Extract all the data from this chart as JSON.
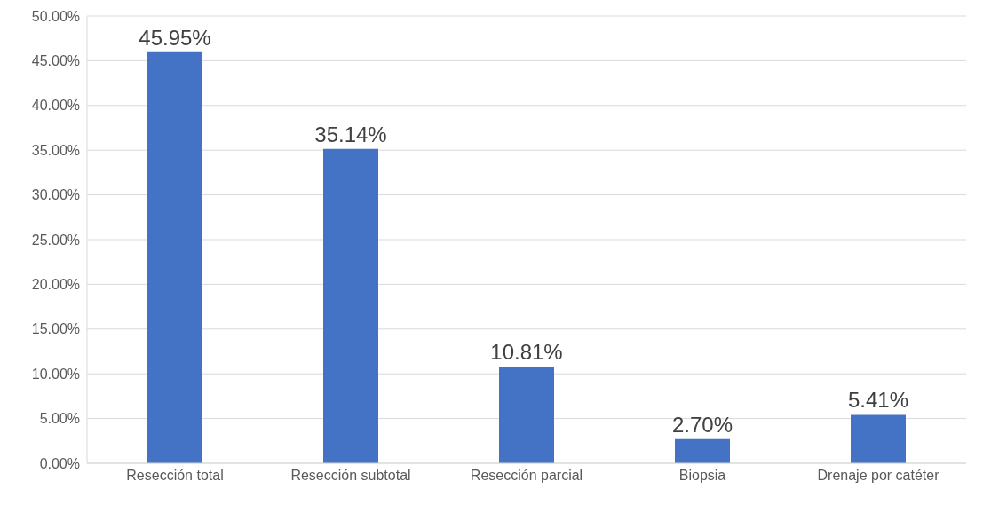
{
  "chart_data": {
    "type": "bar",
    "categories": [
      "Resección total",
      "Resección subtotal",
      "Resección parcial",
      "Biopsia",
      "Drenaje por catéter"
    ],
    "values": [
      45.95,
      35.14,
      10.81,
      2.7,
      5.41
    ],
    "value_labels": [
      "45.95%",
      "35.14%",
      "10.81%",
      "2.70%",
      "5.41%"
    ],
    "color": "#4472c4",
    "ylim": [
      0,
      50
    ],
    "yticks": [
      {
        "value": 0,
        "label": "0.00%"
      },
      {
        "value": 5,
        "label": "5.00%"
      },
      {
        "value": 10,
        "label": "10.00%"
      },
      {
        "value": 15,
        "label": "15.00%"
      },
      {
        "value": 20,
        "label": "20.00%"
      },
      {
        "value": 25,
        "label": "25.00%"
      },
      {
        "value": 30,
        "label": "30.00%"
      },
      {
        "value": 35,
        "label": "35.00%"
      },
      {
        "value": 40,
        "label": "40.00%"
      },
      {
        "value": 45,
        "label": "45.00%"
      },
      {
        "value": 50,
        "label": "50.00%"
      }
    ],
    "grid": "y"
  }
}
